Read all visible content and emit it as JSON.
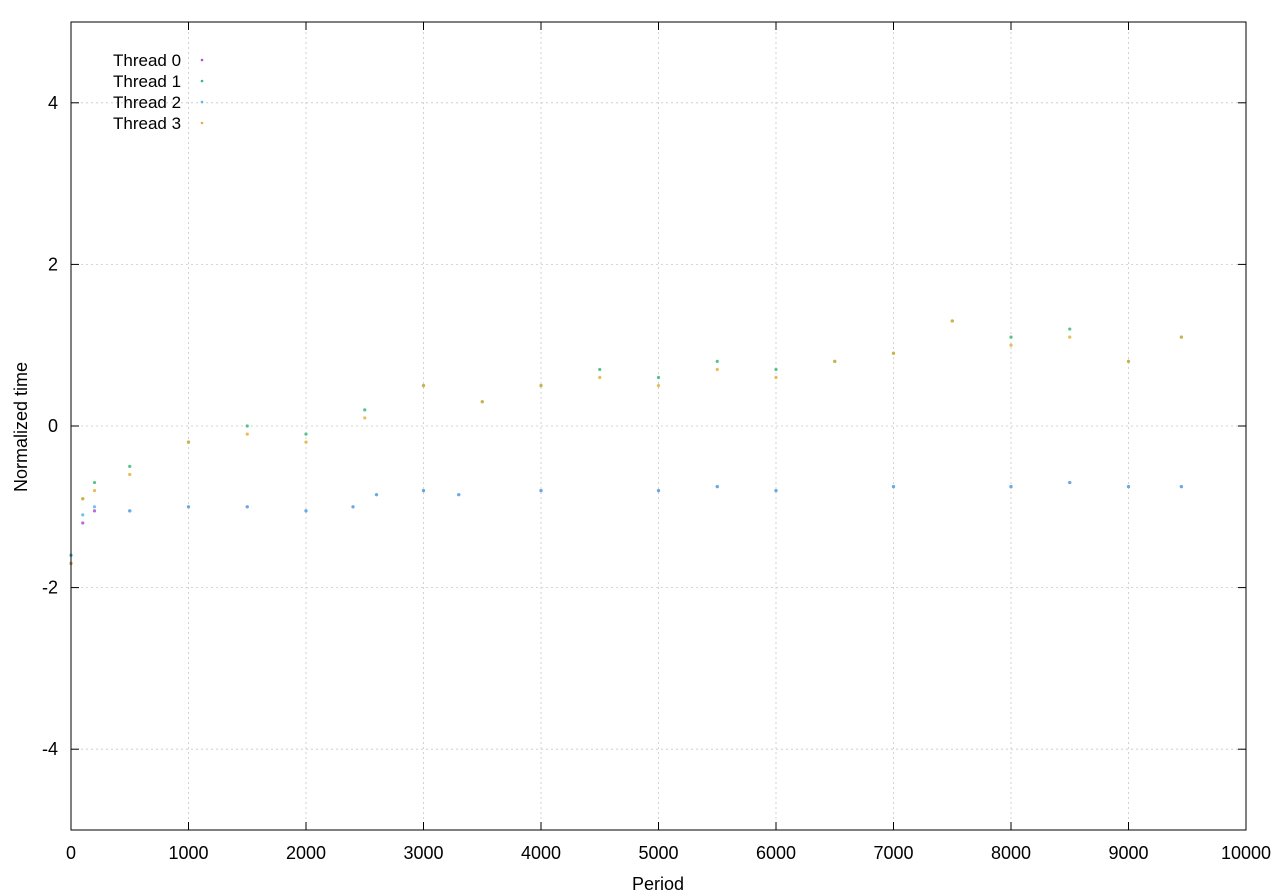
{
  "chart_data": {
    "type": "scatter",
    "title": "",
    "xlabel": "Period",
    "ylabel": "Normalized time",
    "xlim": [
      0,
      10000
    ],
    "ylim": [
      -5,
      5
    ],
    "x_ticks": [
      0,
      1000,
      2000,
      3000,
      4000,
      5000,
      6000,
      7000,
      8000,
      9000,
      10000
    ],
    "x_tick_labels": [
      "0",
      "1000",
      "2000",
      "3000",
      "4000",
      "5000",
      "6000",
      "7000",
      "8000",
      "9000",
      "10000"
    ],
    "y_ticks": [
      -4,
      -2,
      0,
      2,
      4
    ],
    "y_tick_labels": [
      "-4",
      "-2",
      "0",
      "2",
      "4"
    ],
    "grid": true,
    "legend_position": "top-left",
    "series": [
      {
        "name": "Thread 0",
        "color": "#b34fd1",
        "x": [
          0,
          100,
          200,
          500,
          1000,
          1500,
          2000,
          2400,
          2600,
          3000,
          3300,
          4000,
          5000,
          5500,
          6000,
          7000,
          8000,
          8500,
          9000,
          9450
        ],
        "y": [
          -1.7,
          -1.2,
          -1.05,
          -1.05,
          -1.0,
          -1.0,
          -1.05,
          -1.0,
          -0.85,
          -0.8,
          -0.85,
          -0.8,
          -0.8,
          -0.75,
          -0.8,
          -0.75,
          -0.75,
          -0.7,
          -0.75,
          -0.75
        ]
      },
      {
        "name": "Thread 1",
        "color": "#3cb878",
        "x": [
          0,
          100,
          200,
          500,
          1000,
          1500,
          2000,
          2500,
          3000,
          3500,
          4000,
          4500,
          5000,
          5500,
          6000,
          6500,
          7000,
          7500,
          8000,
          8500,
          9000,
          9450
        ],
        "y": [
          -1.6,
          -0.9,
          -0.7,
          -0.5,
          -0.2,
          0.0,
          -0.1,
          0.2,
          0.5,
          0.3,
          0.5,
          0.7,
          0.6,
          0.8,
          0.7,
          0.8,
          0.9,
          1.3,
          1.1,
          1.2,
          0.8,
          1.1
        ]
      },
      {
        "name": "Thread 2",
        "color": "#55b8e8",
        "x": [
          0,
          100,
          200,
          500,
          1000,
          1500,
          2000,
          2400,
          2600,
          3000,
          3300,
          4000,
          5000,
          5500,
          6000,
          7000,
          8000,
          8500,
          9000,
          9450
        ],
        "y": [
          -1.6,
          -1.1,
          -1.0,
          -1.05,
          -1.0,
          -1.0,
          -1.05,
          -1.0,
          -0.85,
          -0.8,
          -0.85,
          -0.8,
          -0.8,
          -0.75,
          -0.8,
          -0.75,
          -0.75,
          -0.7,
          -0.75,
          -0.75
        ]
      },
      {
        "name": "Thread 3",
        "color": "#e2b13c",
        "x": [
          0,
          100,
          200,
          500,
          1000,
          1500,
          2000,
          2500,
          3000,
          3500,
          4000,
          4500,
          5000,
          5500,
          6000,
          6500,
          7000,
          7500,
          8000,
          8500,
          9000,
          9450
        ],
        "y": [
          -1.7,
          -0.9,
          -0.8,
          -0.6,
          -0.2,
          -0.1,
          -0.2,
          0.1,
          0.5,
          0.3,
          0.5,
          0.6,
          0.5,
          0.7,
          0.6,
          0.8,
          0.9,
          1.3,
          1.0,
          1.1,
          0.8,
          1.1
        ]
      }
    ]
  }
}
